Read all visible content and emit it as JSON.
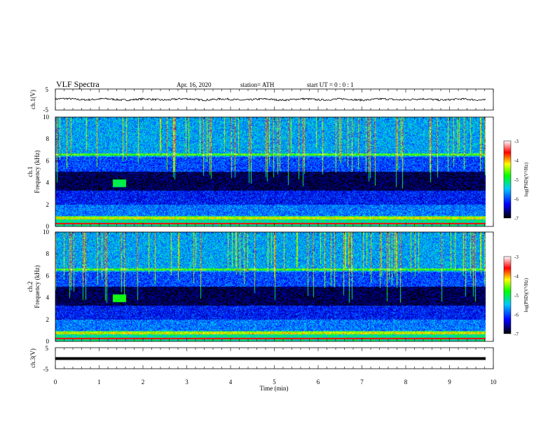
{
  "header": {
    "title": "VLF  Spectra",
    "date": "Apr. 16, 2020",
    "station": "station= ATH",
    "start": "start  UT  =   0 : 0  : 1"
  },
  "panels": {
    "ch1": {
      "label": "ch.1(V)",
      "ticks": [
        "5",
        "-5"
      ]
    },
    "spec1": {
      "label1": "ch.1",
      "label2": "Frequency  (kHz)",
      "ticks": [
        "0",
        "2",
        "4",
        "6",
        "8",
        "10"
      ]
    },
    "spec2": {
      "label1": "ch.2",
      "label2": "Frequency  (kHz)",
      "ticks": [
        "0",
        "2",
        "4",
        "6",
        "8",
        "10"
      ]
    },
    "ch3": {
      "label": "ch.3(V)",
      "ticks": [
        "5",
        "-5"
      ]
    }
  },
  "colorbar": {
    "label": "log(PSD)(V²/Hz)",
    "ticks": [
      "-3",
      "-4",
      "-5",
      "-6",
      "-7"
    ],
    "colors": [
      "#000000",
      "#0000ff",
      "#00c8ff",
      "#00ff00",
      "#ffff00",
      "#ff0000",
      "#ffffff"
    ]
  },
  "xaxis": {
    "label": "Time  (min)",
    "ticks": [
      "0",
      "1",
      "2",
      "3",
      "4",
      "5",
      "6",
      "7",
      "8",
      "9",
      "10"
    ]
  },
  "chart_data": [
    {
      "type": "line",
      "name": "ch.1(V)",
      "xlabel": "Time  (min)",
      "ylabel": "ch.1(V)",
      "xlim": [
        0,
        10
      ],
      "ylim": [
        -5,
        5
      ],
      "x": [
        0,
        1,
        2,
        3,
        4,
        5,
        6,
        7,
        8,
        9,
        9.8
      ],
      "y": [
        0.2,
        0.1,
        0.0,
        0.1,
        0.0,
        0.0,
        0.1,
        0.0,
        0.1,
        0.0,
        0.0
      ]
    },
    {
      "type": "heatmap",
      "name": "ch.1",
      "xlabel": "Time  (min)",
      "ylabel": "Frequency  (kHz)",
      "xlim": [
        0,
        10
      ],
      "ylim": [
        0,
        10
      ],
      "data_end_min": 9.8,
      "color_scale": "log(PSD)(V²/Hz)",
      "zlim": [
        -7,
        -3
      ],
      "features": [
        {
          "t_min": 1.3,
          "t_max": 1.6,
          "f_khz": 4.0,
          "level": -5.0
        }
      ]
    },
    {
      "type": "heatmap",
      "name": "ch.2",
      "xlabel": "Time  (min)",
      "ylabel": "Frequency  (kHz)",
      "xlim": [
        0,
        10
      ],
      "ylim": [
        0,
        10
      ],
      "data_end_min": 9.8,
      "color_scale": "log(PSD)(V²/Hz)",
      "zlim": [
        -7,
        -3
      ],
      "features": [
        {
          "t_min": 1.3,
          "t_max": 1.6,
          "f_khz": 4.0,
          "level": -4.8
        }
      ]
    },
    {
      "type": "line",
      "name": "ch.3(V)",
      "xlabel": "Time  (min)",
      "ylabel": "ch.3(V)",
      "xlim": [
        0,
        10
      ],
      "ylim": [
        -5,
        5
      ],
      "x": [
        0,
        9.8
      ],
      "y": [
        0,
        0
      ]
    }
  ]
}
